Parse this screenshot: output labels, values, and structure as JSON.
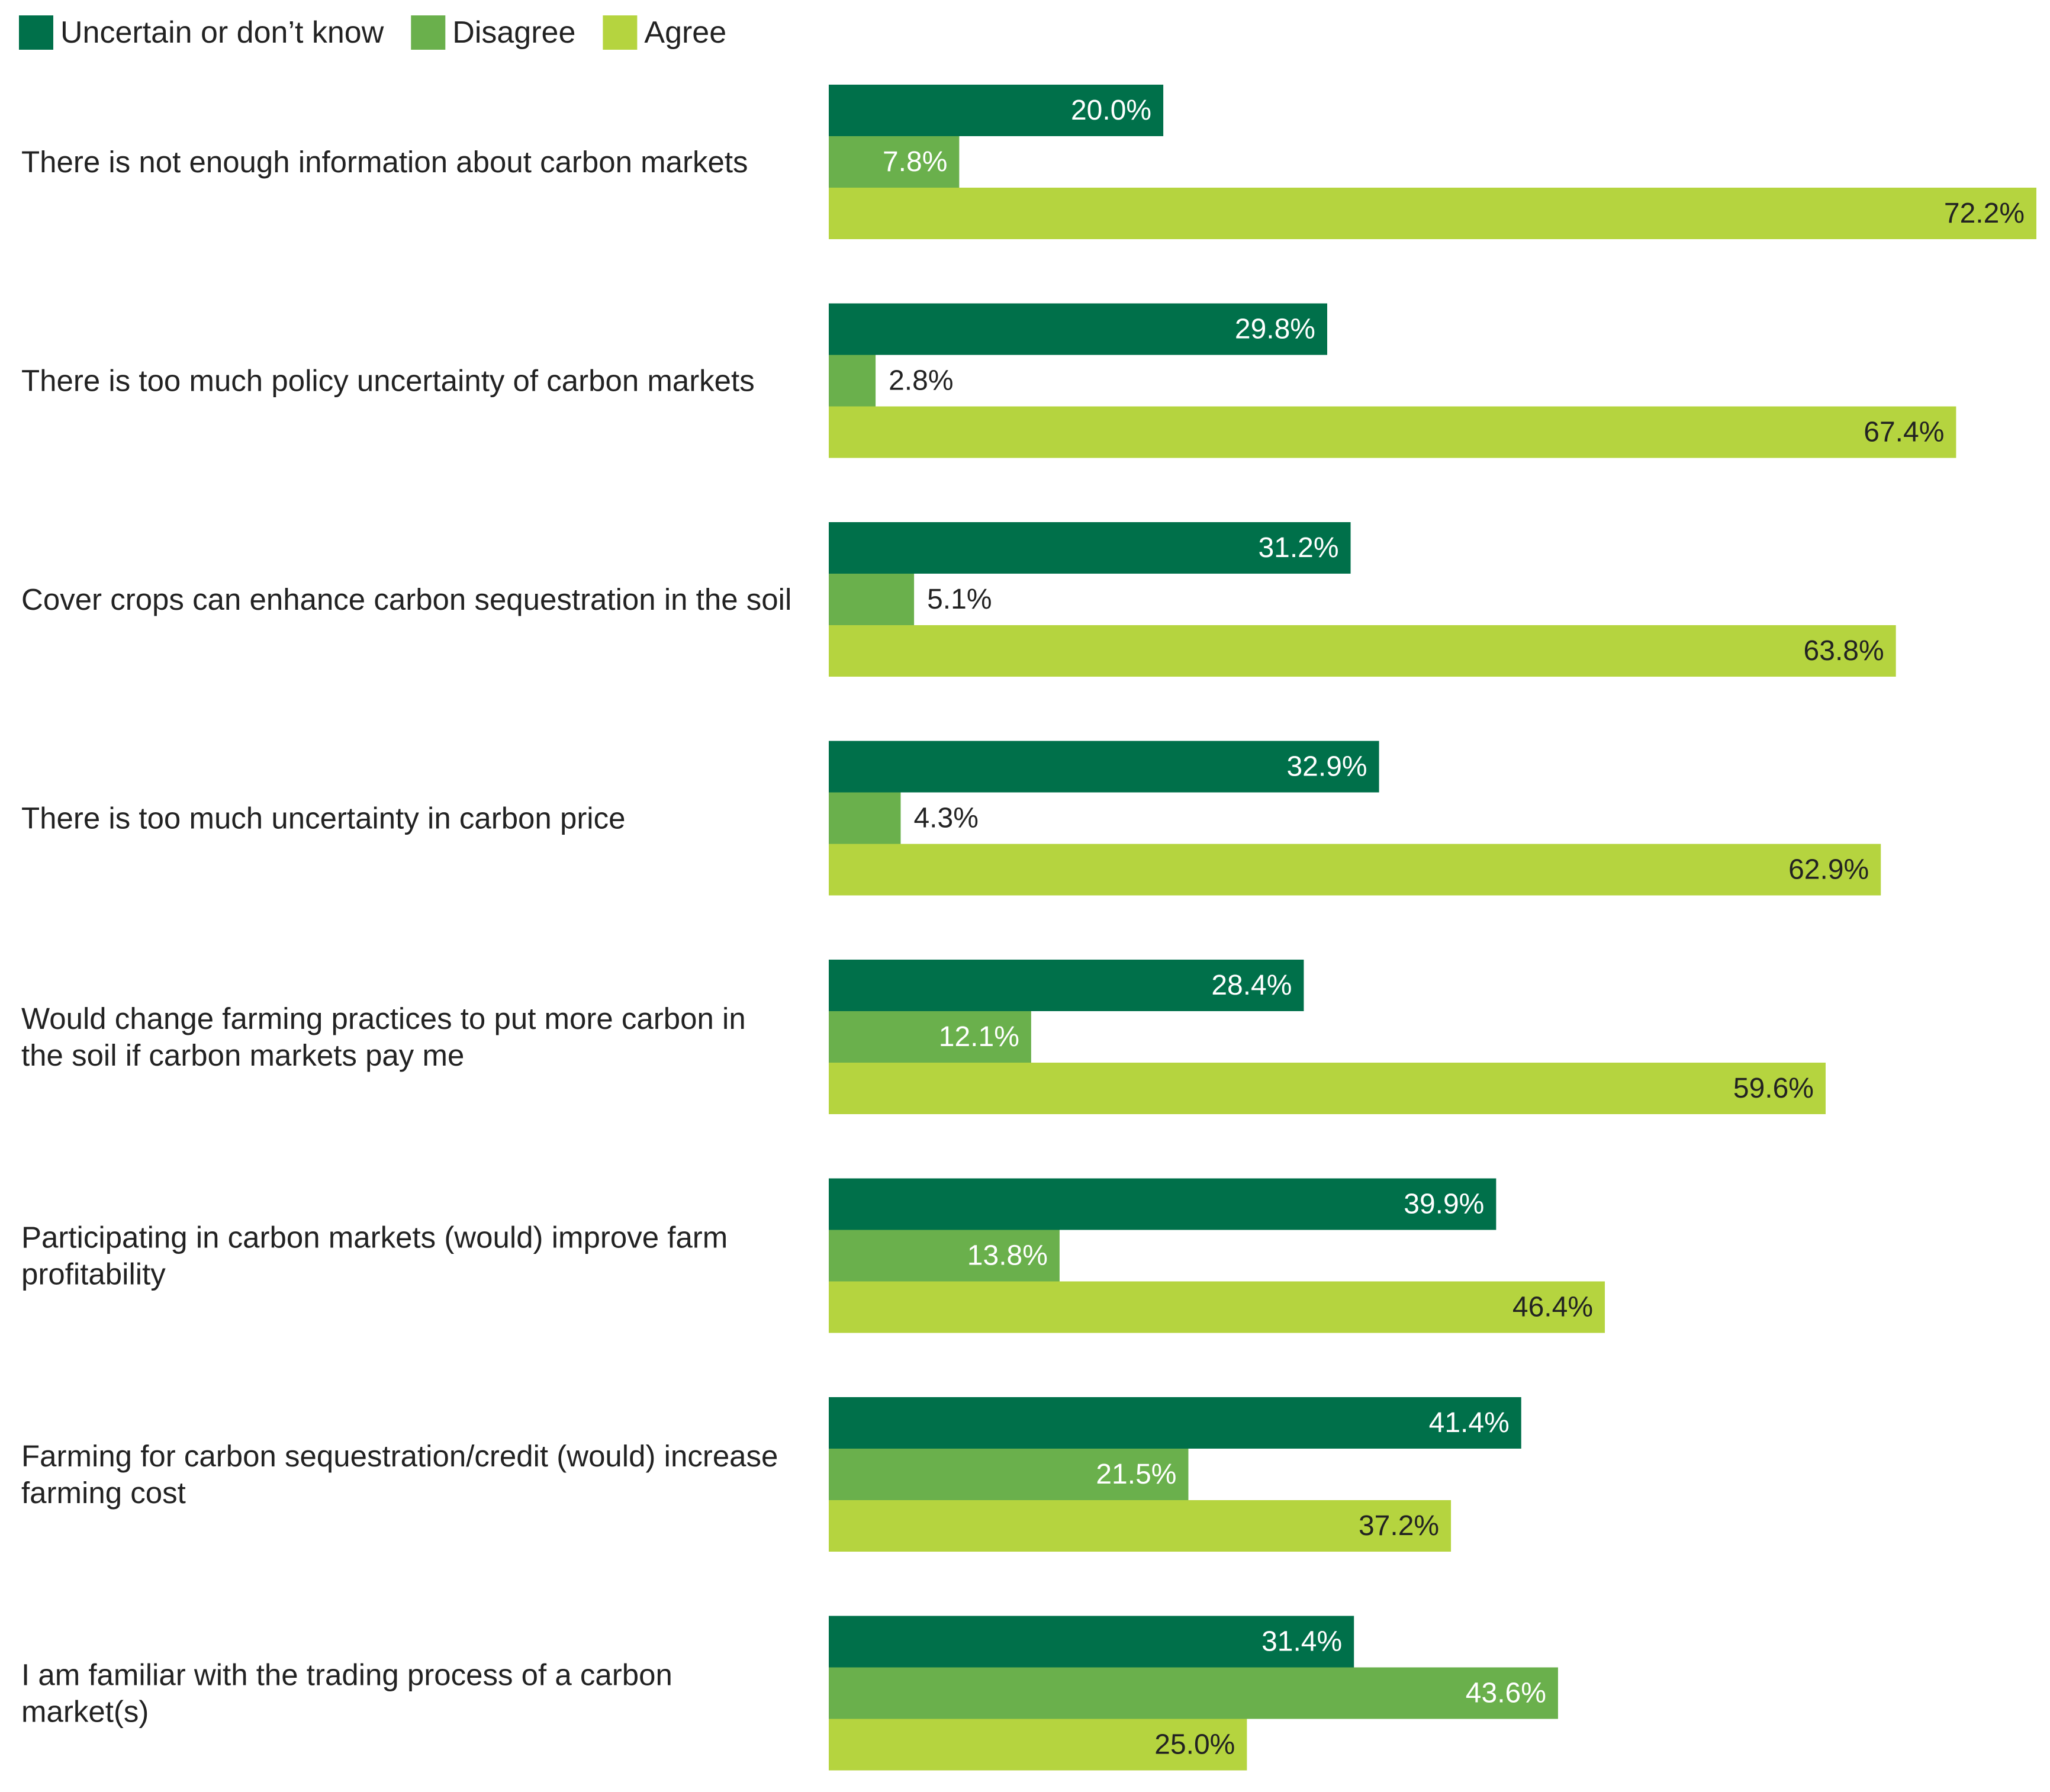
{
  "colors": {
    "uncertain": "#00704a",
    "disagree": "#6ab04c",
    "agree": "#b5d43f",
    "text_dark": "#222222",
    "text_light": "#ffffff"
  },
  "chart_data": {
    "type": "bar",
    "orientation": "horizontal",
    "title": "",
    "xlabel": "",
    "ylabel": "",
    "xlim": [
      0,
      72.2
    ],
    "grid": false,
    "legend_position": "top-left",
    "value_format": "percent-1dp",
    "categories": [
      [
        "There is not enough information about carbon markets"
      ],
      [
        "There is too much policy uncertainty of carbon markets"
      ],
      [
        "Cover crops can enhance carbon sequestration in the soil"
      ],
      [
        "There is too much uncertainty in carbon price"
      ],
      [
        "Would change farming practices to put more carbon in",
        "the soil if carbon markets pay me"
      ],
      [
        "Participating in carbon markets (would) improve farm",
        "profitability"
      ],
      [
        "Farming for carbon sequestration/credit (would) increase",
        "farming cost"
      ],
      [
        "I am familiar with the trading process of a carbon",
        "market(s)"
      ]
    ],
    "series": [
      {
        "name": "Uncertain or don’t know",
        "color_key": "uncertain",
        "values": [
          20.0,
          29.8,
          31.2,
          32.9,
          28.4,
          39.9,
          41.4,
          31.4
        ]
      },
      {
        "name": "Disagree",
        "color_key": "disagree",
        "values": [
          7.8,
          2.8,
          5.1,
          4.3,
          12.1,
          13.8,
          21.5,
          43.6
        ]
      },
      {
        "name": "Agree",
        "color_key": "agree",
        "values": [
          72.2,
          67.4,
          63.8,
          62.9,
          59.6,
          46.4,
          37.2,
          25.0
        ]
      }
    ]
  }
}
